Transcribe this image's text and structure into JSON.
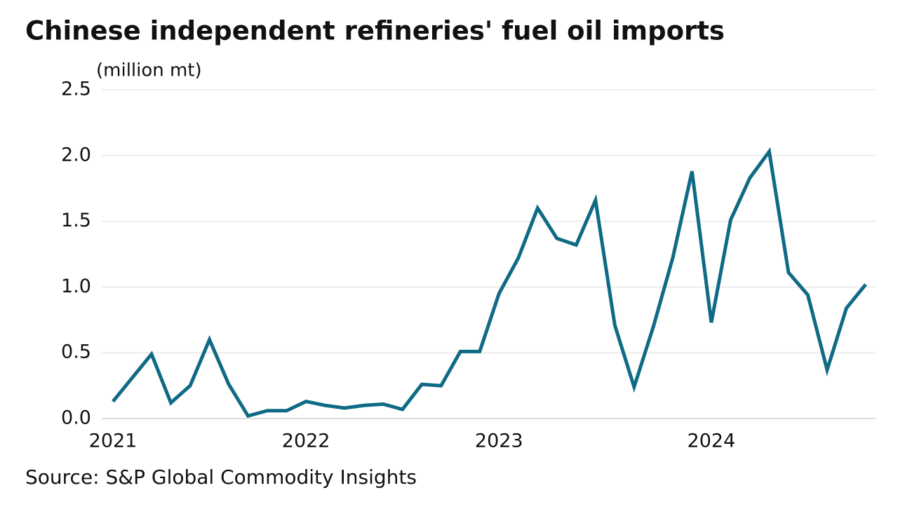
{
  "chart_data": {
    "type": "line",
    "title": "Chinese independent refineries' fuel oil imports",
    "subtitle": "(million mt)",
    "source": "Source: S&P Global Commodity Insights",
    "categories": [
      "2021",
      null,
      null,
      null,
      null,
      null,
      null,
      null,
      null,
      null,
      "2022",
      null,
      null,
      null,
      null,
      null,
      null,
      null,
      null,
      null,
      "2023",
      null,
      null,
      null,
      null,
      null,
      null,
      null,
      null,
      null,
      null,
      "2024",
      null,
      null,
      null,
      null,
      null,
      null,
      null,
      null
    ],
    "series": [
      {
        "name": "Fuel oil imports",
        "color": "#0f6b84",
        "values": [
          0.13,
          0.31,
          0.49,
          0.12,
          0.25,
          0.6,
          0.26,
          0.02,
          0.06,
          0.06,
          0.13,
          0.1,
          0.08,
          0.1,
          0.11,
          0.07,
          0.26,
          0.25,
          0.51,
          0.51,
          0.95,
          1.22,
          1.6,
          1.37,
          1.32,
          1.66,
          0.71,
          0.24,
          0.7,
          1.22,
          1.88,
          0.73,
          1.51,
          1.83,
          2.03,
          1.11,
          0.94,
          0.37,
          0.84,
          1.02
        ]
      }
    ],
    "ylim": [
      0,
      2.5
    ],
    "yticks": [
      {
        "value": 0,
        "label": "0.0"
      },
      0.5,
      {
        "value": 1,
        "label": "1.0"
      },
      1.5,
      {
        "value": 2,
        "label": "2.0"
      },
      2.5
    ],
    "grid": true
  }
}
